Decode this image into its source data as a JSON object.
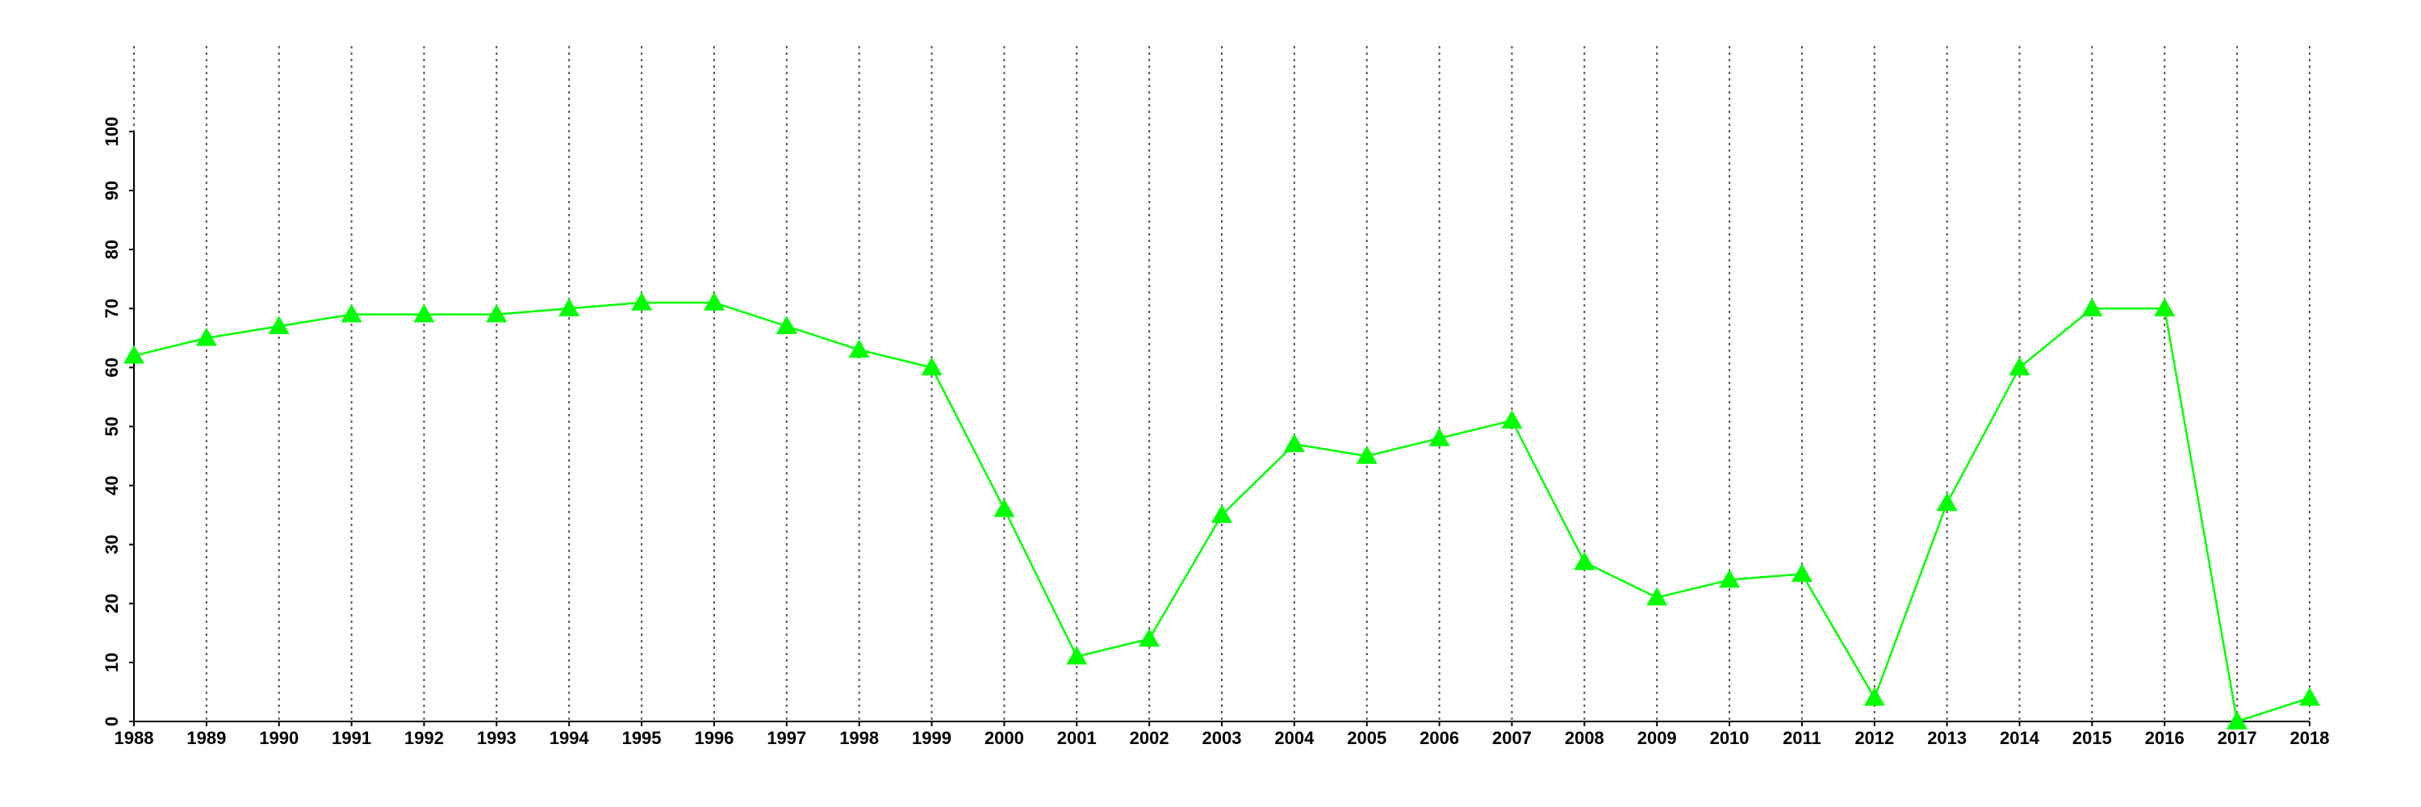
{
  "chart_data": {
    "type": "line",
    "x": [
      1988,
      1989,
      1990,
      1991,
      1992,
      1993,
      1994,
      1995,
      1996,
      1997,
      1998,
      1999,
      2000,
      2001,
      2002,
      2003,
      2004,
      2005,
      2006,
      2007,
      2008,
      2009,
      2010,
      2011,
      2012,
      2013,
      2014,
      2015,
      2016,
      2017,
      2018
    ],
    "series": [
      {
        "color": "#00ff00",
        "marker": "triangle",
        "values": [
          62,
          65,
          67,
          69,
          69,
          69,
          70,
          71,
          71,
          67,
          63,
          60,
          36,
          11,
          14,
          35,
          47,
          45,
          48,
          51,
          27,
          21,
          24,
          25,
          4,
          37,
          60,
          70,
          70,
          0,
          4
        ]
      }
    ],
    "xlim": [
      1988,
      2018
    ],
    "xticks": [
      1988,
      1989,
      1990,
      1991,
      1992,
      1993,
      1994,
      1995,
      1996,
      1997,
      1998,
      1999,
      2000,
      2001,
      2002,
      2003,
      2004,
      2005,
      2006,
      2007,
      2008,
      2009,
      2010,
      2011,
      2012,
      2013,
      2014,
      2015,
      2016,
      2017,
      2018
    ],
    "ylim": [
      0,
      100
    ],
    "yticks": [
      0,
      10,
      20,
      30,
      40,
      50,
      60,
      70,
      80,
      90,
      100
    ],
    "grid": "x"
  }
}
